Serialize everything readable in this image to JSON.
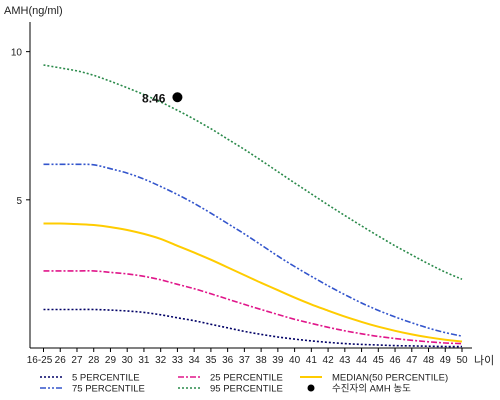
{
  "chart_data": {
    "type": "line",
    "ylabel": "AMH(ng/ml)",
    "xlabel": "나이",
    "ylim": [
      0,
      11
    ],
    "yticks": [
      5,
      10
    ],
    "categories": [
      "16-25",
      "26",
      "27",
      "28",
      "29",
      "30",
      "31",
      "32",
      "33",
      "34",
      "35",
      "36",
      "37",
      "38",
      "39",
      "40",
      "41",
      "42",
      "43",
      "44",
      "45",
      "46",
      "47",
      "48",
      "49",
      "50"
    ],
    "series": [
      {
        "name": "5 PERCENTILE",
        "color": "#000066",
        "style": "dotted",
        "values": [
          1.3,
          1.3,
          1.3,
          1.3,
          1.28,
          1.25,
          1.2,
          1.12,
          1.02,
          0.92,
          0.8,
          0.68,
          0.56,
          0.46,
          0.37,
          0.3,
          0.24,
          0.19,
          0.15,
          0.12,
          0.1,
          0.08,
          0.07,
          0.06,
          0.05,
          0.05
        ]
      },
      {
        "name": "25 PERCENTILE",
        "color": "#e0168a",
        "style": "dashdot",
        "values": [
          2.6,
          2.6,
          2.6,
          2.6,
          2.55,
          2.5,
          2.42,
          2.3,
          2.15,
          2.0,
          1.83,
          1.65,
          1.47,
          1.3,
          1.13,
          0.97,
          0.83,
          0.7,
          0.58,
          0.48,
          0.39,
          0.32,
          0.26,
          0.21,
          0.17,
          0.15
        ]
      },
      {
        "name": "MEDIAN(50 PERCENTILE)",
        "color": "#ffcc00",
        "style": "solid",
        "values": [
          4.2,
          4.2,
          4.18,
          4.15,
          4.08,
          3.98,
          3.85,
          3.68,
          3.45,
          3.22,
          2.98,
          2.72,
          2.46,
          2.2,
          1.95,
          1.7,
          1.47,
          1.26,
          1.06,
          0.88,
          0.72,
          0.58,
          0.46,
          0.36,
          0.28,
          0.22
        ]
      },
      {
        "name": "75 PERCENTILE",
        "color": "#3355cc",
        "style": "dashdotdot",
        "values": [
          6.2,
          6.2,
          6.2,
          6.18,
          6.05,
          5.9,
          5.7,
          5.45,
          5.18,
          4.88,
          4.55,
          4.2,
          3.85,
          3.48,
          3.1,
          2.75,
          2.42,
          2.1,
          1.8,
          1.52,
          1.27,
          1.05,
          0.85,
          0.67,
          0.52,
          0.4
        ]
      },
      {
        "name": "95 PERCENTILE",
        "color": "#2a8a4a",
        "style": "dotted",
        "values": [
          9.55,
          9.45,
          9.35,
          9.2,
          9.0,
          8.78,
          8.55,
          8.3,
          8.02,
          7.72,
          7.4,
          7.05,
          6.7,
          6.33,
          5.95,
          5.57,
          5.2,
          4.83,
          4.47,
          4.12,
          3.78,
          3.45,
          3.14,
          2.84,
          2.56,
          2.32
        ]
      }
    ],
    "annotation": {
      "x": "33",
      "y": 8.46,
      "label": "8.46"
    },
    "marker_legend": "수진자의 AMH 농도",
    "legend_position": "bottom"
  }
}
